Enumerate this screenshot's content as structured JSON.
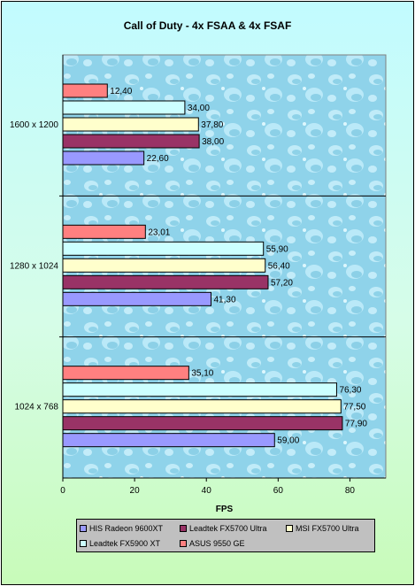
{
  "chart_data": {
    "type": "bar",
    "orientation": "horizontal",
    "title": "Call of Duty - 4x FSAA & 4x FSAF",
    "xlabel": "FPS",
    "xlim": [
      0,
      90
    ],
    "xticks": [
      0,
      20,
      40,
      60,
      80
    ],
    "grid": false,
    "legend_position": "bottom",
    "categories": [
      "1600 x 1200",
      "1280 x 1024",
      "1024 x 768"
    ],
    "series": [
      {
        "name": "HIS Radeon 9600XT",
        "color": "#9999ff",
        "values": [
          22.6,
          41.3,
          59.0
        ],
        "labels": [
          "22,60",
          "41,30",
          "59,00"
        ]
      },
      {
        "name": "Leadtek FX5700 Ultra",
        "color": "#993366",
        "values": [
          38.0,
          57.2,
          77.9
        ],
        "labels": [
          "38,00",
          "57,20",
          "77,90"
        ]
      },
      {
        "name": "MSI FX5700 Ultra",
        "color": "#ffffcc",
        "values": [
          37.8,
          56.4,
          77.5
        ],
        "labels": [
          "37,80",
          "56,40",
          "77,50"
        ]
      },
      {
        "name": "Leadtek FX5900 XT",
        "color": "#ccffff",
        "values": [
          34.0,
          55.9,
          76.3
        ],
        "labels": [
          "34,00",
          "55,90",
          "76,30"
        ]
      },
      {
        "name": "ASUS 9550 GE",
        "color": "#ff8080",
        "values": [
          12.4,
          23.01,
          35.1
        ],
        "labels": [
          "12,40",
          "23,01",
          "35,10"
        ]
      }
    ]
  }
}
